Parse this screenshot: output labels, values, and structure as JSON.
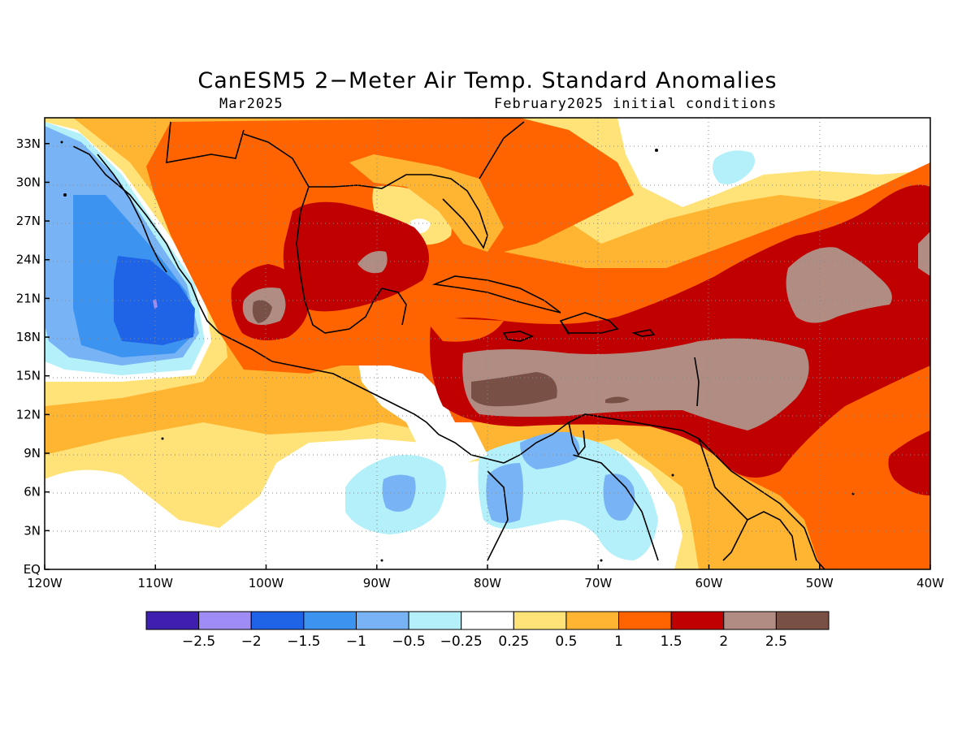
{
  "title": "CanESM5 2−Meter Air Temp. Standard Anomalies",
  "subtitle_left": "Mar2025",
  "subtitle_right": "February2025 initial conditions",
  "map": {
    "lon_labels": [
      "120W",
      "110W",
      "100W",
      "90W",
      "80W",
      "70W",
      "60W",
      "50W",
      "40W"
    ],
    "lat_labels": [
      "EQ",
      "3N",
      "6N",
      "9N",
      "12N",
      "15N",
      "18N",
      "21N",
      "24N",
      "27N",
      "30N",
      "33N"
    ],
    "region": "Mexico, Central America, Caribbean, Gulf of Mexico, northern South America",
    "grid": "dotted"
  },
  "legend": {
    "colors": [
      "#3e1fb0",
      "#a08cf5",
      "#1f64e6",
      "#3c94f0",
      "#78b4f5",
      "#b4f0fa",
      "#ffffff",
      "#ffe378",
      "#ffb432",
      "#ff6400",
      "#c00000",
      "#b08c82",
      "#785046"
    ],
    "labels": [
      "−2.5",
      "−2",
      "−1.5",
      "−1",
      "−0.5",
      "−0.25",
      "0.25",
      "0.5",
      "1",
      "1.5",
      "2",
      "2.5"
    ]
  }
}
